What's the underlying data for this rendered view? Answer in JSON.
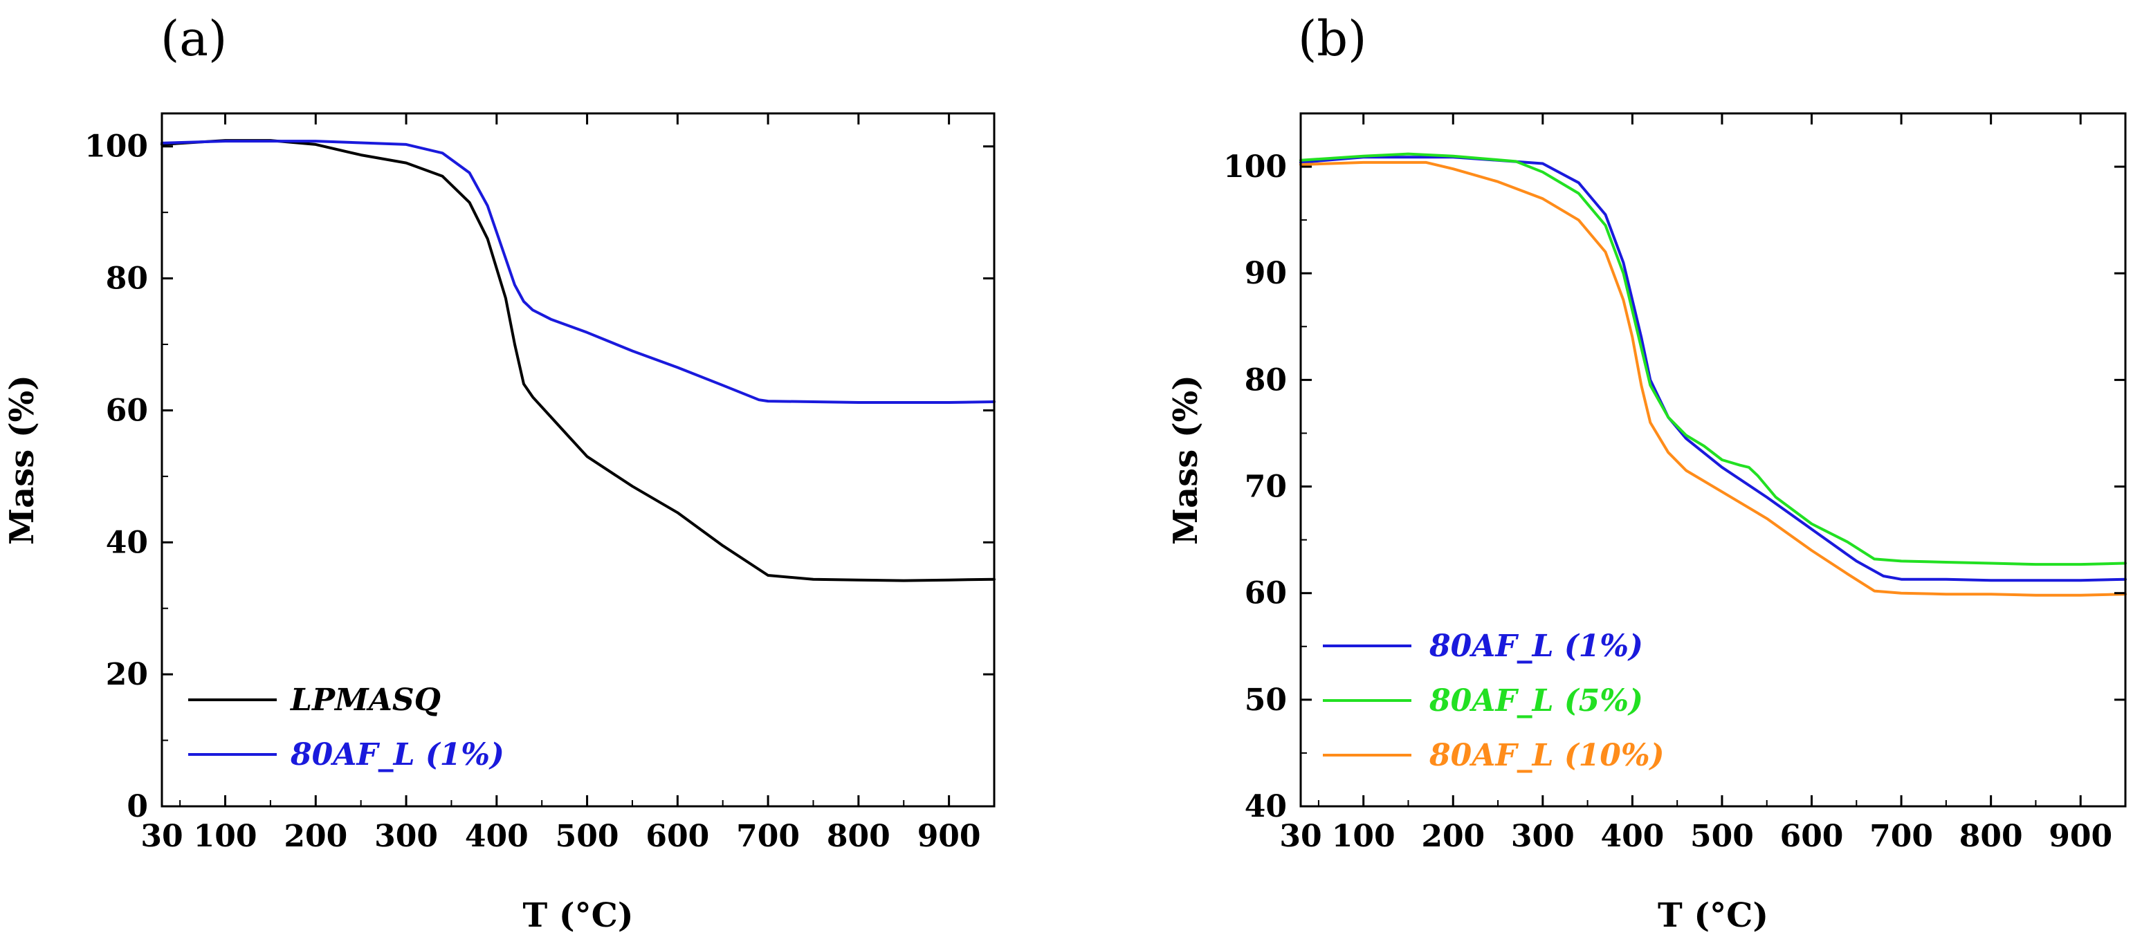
{
  "chart_data": [
    {
      "panel_label": "(a)",
      "type": "line",
      "xlabel": "T (°C)",
      "ylabel": "Mass (%)",
      "xlim": [
        30,
        950
      ],
      "ylim": [
        0,
        105
      ],
      "xticks": [
        30,
        100,
        200,
        300,
        400,
        500,
        600,
        700,
        800,
        900
      ],
      "yticks": [
        0,
        20,
        40,
        60,
        80,
        100
      ],
      "legend_position": "bottom-left",
      "series": [
        {
          "name": "LPMASQ",
          "color": "#000000",
          "x": [
            30,
            100,
            150,
            200,
            250,
            300,
            340,
            370,
            390,
            410,
            420,
            430,
            440,
            460,
            480,
            500,
            550,
            600,
            650,
            700,
            750,
            800,
            850,
            900,
            950
          ],
          "y": [
            100.3,
            100.9,
            100.9,
            100.3,
            98.7,
            97.5,
            95.5,
            91.5,
            86,
            77,
            70,
            64,
            62,
            59,
            56,
            53,
            48.5,
            44.5,
            39.5,
            35,
            34.4,
            34.3,
            34.2,
            34.3,
            34.4
          ]
        },
        {
          "name": "80AF_L (1%)",
          "color": "#1a1adc",
          "x": [
            30,
            100,
            200,
            300,
            340,
            370,
            390,
            410,
            420,
            430,
            440,
            460,
            500,
            550,
            600,
            650,
            690,
            700,
            750,
            800,
            850,
            900,
            950
          ],
          "y": [
            100.5,
            100.8,
            100.8,
            100.3,
            99,
            96,
            91,
            83,
            79,
            76.5,
            75.2,
            73.8,
            71.8,
            69,
            66.5,
            63.8,
            61.6,
            61.4,
            61.3,
            61.2,
            61.2,
            61.2,
            61.3
          ]
        }
      ]
    },
    {
      "panel_label": "(b)",
      "type": "line",
      "xlabel": "T (°C)",
      "ylabel": "Mass (%)",
      "xlim": [
        30,
        950
      ],
      "ylim": [
        40,
        105
      ],
      "xticks": [
        30,
        100,
        200,
        300,
        400,
        500,
        600,
        700,
        800,
        900
      ],
      "yticks": [
        40,
        50,
        60,
        70,
        80,
        90,
        100
      ],
      "legend_position": "bottom-left",
      "series": [
        {
          "name": "80AF_L (1%)",
          "color": "#1a1adc",
          "x": [
            30,
            100,
            200,
            300,
            340,
            370,
            390,
            410,
            420,
            440,
            460,
            500,
            550,
            600,
            650,
            680,
            700,
            750,
            800,
            850,
            900,
            950
          ],
          "y": [
            100.4,
            100.9,
            100.9,
            100.3,
            98.5,
            95.5,
            91,
            84,
            80,
            76.5,
            74.5,
            71.8,
            69,
            66,
            63,
            61.6,
            61.3,
            61.3,
            61.2,
            61.2,
            61.2,
            61.3
          ]
        },
        {
          "name": "80AF_L (5%)",
          "color": "#22e022",
          "x": [
            30,
            100,
            150,
            200,
            270,
            300,
            340,
            370,
            390,
            410,
            420,
            440,
            460,
            480,
            500,
            520,
            530,
            540,
            560,
            600,
            640,
            670,
            700,
            750,
            800,
            850,
            900,
            950
          ],
          "y": [
            100.6,
            101,
            101.2,
            101,
            100.5,
            99.5,
            97.5,
            94.5,
            90,
            83,
            79.5,
            76.5,
            74.8,
            73.8,
            72.5,
            72,
            71.8,
            71,
            69,
            66.5,
            64.8,
            63.2,
            63,
            62.9,
            62.8,
            62.7,
            62.7,
            62.8
          ]
        },
        {
          "name": "80AF_L (10%)",
          "color": "#ff8c1a",
          "x": [
            30,
            100,
            170,
            200,
            250,
            300,
            340,
            370,
            390,
            400,
            410,
            420,
            440,
            460,
            500,
            550,
            600,
            640,
            670,
            700,
            750,
            800,
            850,
            900,
            950
          ],
          "y": [
            100.2,
            100.4,
            100.4,
            99.8,
            98.6,
            97,
            95,
            92,
            87.5,
            84,
            79.5,
            76,
            73.2,
            71.5,
            69.5,
            67,
            64,
            61.8,
            60.2,
            60,
            59.9,
            59.9,
            59.8,
            59.8,
            59.9
          ]
        }
      ]
    }
  ]
}
